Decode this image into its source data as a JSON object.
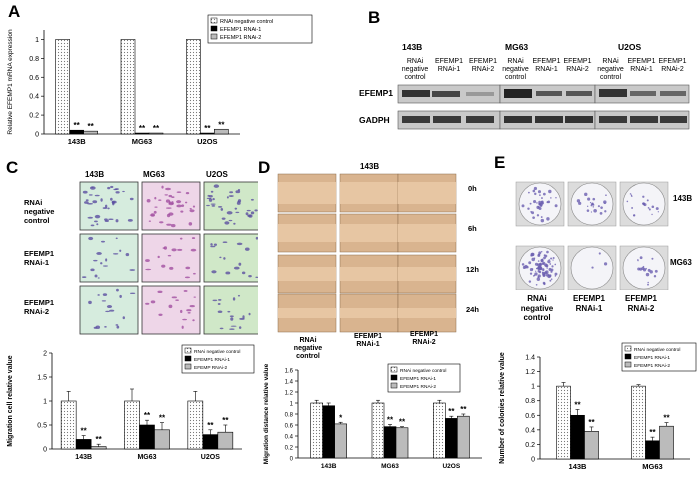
{
  "panels": {
    "A": "A",
    "B": "B",
    "C": "C",
    "D": "D",
    "E": "E"
  },
  "panelA": {
    "chart_data": {
      "type": "bar",
      "ylabel": "Relative EFEMP1 mRNA expression",
      "categories": [
        "143B",
        "MG63",
        "U2OS"
      ],
      "yticks": [
        "0",
        "0.2",
        "0.4",
        "0.6",
        "0.8",
        "1"
      ],
      "ylim": [
        0,
        1.1
      ],
      "series": [
        {
          "name": "RNAi negative control",
          "values": [
            1,
            1,
            1
          ]
        },
        {
          "name": "EFEMP1 RNAi-1",
          "values": [
            0.04,
            0.01,
            0.01
          ]
        },
        {
          "name": "EFEMP1 RNAi-2",
          "values": [
            0.03,
            0.01,
            0.05
          ]
        }
      ],
      "annotations": [
        "**",
        "**",
        "**",
        "**",
        "**",
        "**"
      ]
    }
  },
  "panelB": {
    "cell_lines": [
      "143B",
      "MG63",
      "U2OS"
    ],
    "lanes": [
      [
        "RNAi",
        "negative",
        "control"
      ],
      [
        "EFEMP1",
        "RNAi-1"
      ],
      [
        "EFEMP1",
        "RNAi-2"
      ]
    ],
    "rows": [
      "EFEMP1",
      "GADPH"
    ]
  },
  "panelC": {
    "cols": [
      "143B",
      "MG63",
      "U2OS"
    ],
    "rows": [
      [
        "RNAi",
        "negative",
        "control"
      ],
      [
        "EFEMP1",
        "RNAi-1"
      ],
      [
        "EFEMP1",
        "RNAi-2"
      ]
    ],
    "chart_data": {
      "type": "bar",
      "ylabel": "Migration cell relative value",
      "categories": [
        "143B",
        "MG63",
        "U2OS"
      ],
      "yticks": [
        "0",
        "0.5",
        "1",
        "1.5",
        "2"
      ],
      "ylim": [
        0,
        2
      ],
      "series": [
        {
          "name": "RNAi negative control",
          "values": [
            1.0,
            1.0,
            1.0
          ],
          "err": [
            0.2,
            0.25,
            0.2
          ]
        },
        {
          "name": "EFEMP1 RNAi-1",
          "values": [
            0.2,
            0.5,
            0.3
          ],
          "err": [
            0.08,
            0.1,
            0.1
          ]
        },
        {
          "name": "EFEMP RNAi-2",
          "values": [
            0.05,
            0.4,
            0.35
          ],
          "err": [
            0.05,
            0.15,
            0.15
          ]
        }
      ],
      "annotations": [
        "**",
        "**",
        "**",
        "**",
        "**",
        "**"
      ]
    }
  },
  "panelD": {
    "title": "143B",
    "times": [
      "0h",
      "6h",
      "12h",
      "24h"
    ],
    "cols": [
      [
        "RNAi",
        "negative",
        "control"
      ],
      [
        "EFEMP1",
        "RNAi-1"
      ],
      [
        "EFEMP1",
        "RNAi-2"
      ]
    ],
    "chart_data": {
      "type": "bar",
      "ylabel": "Migration distance relative value",
      "categories": [
        "143B",
        "MG63",
        "U2OS"
      ],
      "yticks": [
        "0",
        "0.2",
        "0.4",
        "0.6",
        "0.8",
        "1",
        "1.2",
        "1.4",
        "1.6"
      ],
      "ylim": [
        0,
        1.6
      ],
      "series": [
        {
          "name": "RNAi negative control",
          "values": [
            1.0,
            1.0,
            1.0
          ],
          "err": [
            0.05,
            0.05,
            0.05
          ]
        },
        {
          "name": "EFEMP1 RNAi-1",
          "values": [
            0.95,
            0.57,
            0.72
          ],
          "err": [
            0.05,
            0.04,
            0.04
          ]
        },
        {
          "name": "EFEMP1 RNAi-2",
          "values": [
            0.62,
            0.55,
            0.76
          ],
          "err": [
            0.03,
            0.02,
            0.04
          ]
        }
      ],
      "annotations": [
        "*",
        "**",
        "**",
        "**",
        "**"
      ]
    }
  },
  "panelE": {
    "rows": [
      "143B",
      "MG63"
    ],
    "cols": [
      [
        "RNAi",
        "negative",
        "control"
      ],
      [
        "EFEMP1",
        "RNAi-1"
      ],
      [
        "EFEMP1",
        "RNAi-2"
      ]
    ],
    "chart_data": {
      "type": "bar",
      "ylabel": "Number of colonies relative value",
      "categories": [
        "143B",
        "MG63"
      ],
      "yticks": [
        "0",
        "0.2",
        "0.4",
        "0.6",
        "0.8",
        "1",
        "1.2",
        "1.4"
      ],
      "ylim": [
        0,
        1.4
      ],
      "series": [
        {
          "name": "RNAi negative control",
          "values": [
            1.0,
            1.0
          ],
          "err": [
            0.05,
            0.02
          ]
        },
        {
          "name": "EFEMP1 RNAi-1",
          "values": [
            0.6,
            0.25
          ],
          "err": [
            0.08,
            0.05
          ]
        },
        {
          "name": "EFEMP1 RNAi-2",
          "values": [
            0.38,
            0.45
          ],
          "err": [
            0.06,
            0.05
          ]
        }
      ],
      "annotations": [
        "**",
        "**",
        "**",
        "**"
      ]
    }
  }
}
